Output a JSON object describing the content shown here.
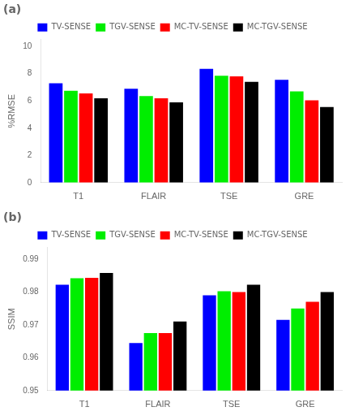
{
  "chart_data": [
    {
      "type": "bar",
      "title": "(a)",
      "categories": [
        "T1",
        "FLAIR",
        "TSE",
        "GRE"
      ],
      "series": [
        {
          "name": "TV-SENSE",
          "color": "#0000FF",
          "values": [
            7.3,
            6.9,
            8.35,
            7.55
          ]
        },
        {
          "name": "TGV-SENSE",
          "color": "#00EE00",
          "values": [
            6.75,
            6.35,
            7.85,
            6.7
          ]
        },
        {
          "name": "MC-TV-SENSE",
          "color": "#FF0000",
          "values": [
            6.55,
            6.2,
            7.8,
            6.05
          ]
        },
        {
          "name": "MC-TGV-SENSE",
          "color": "#000000",
          "values": [
            6.2,
            5.9,
            7.4,
            5.55
          ]
        }
      ],
      "y_label": "%RMSE",
      "ylim": [
        0,
        10.5
      ],
      "yticks": [
        0,
        2,
        4,
        6,
        8,
        10
      ],
      "grid": false,
      "legend": "top"
    },
    {
      "type": "bar",
      "title": "(b)",
      "categories": [
        "T1",
        "FLAIR",
        "TSE",
        "GRE"
      ],
      "series": [
        {
          "name": "TV-SENSE",
          "color": "#0000FF",
          "values": [
            0.9822,
            0.9645,
            0.979,
            0.9715
          ]
        },
        {
          "name": "TGV-SENSE",
          "color": "#00EE00",
          "values": [
            0.9842,
            0.9675,
            0.9802,
            0.975
          ]
        },
        {
          "name": "MC-TV-SENSE",
          "color": "#FF0000",
          "values": [
            0.9843,
            0.9675,
            0.98,
            0.977
          ]
        },
        {
          "name": "MC-TGV-SENSE",
          "color": "#000000",
          "values": [
            0.9858,
            0.971,
            0.9822,
            0.98
          ]
        }
      ],
      "y_label": "SSIM",
      "ylim": [
        0.95,
        0.9935
      ],
      "yticks": [
        0.95,
        0.96,
        0.97,
        0.98,
        0.99
      ],
      "grid": false,
      "legend": "top"
    }
  ]
}
